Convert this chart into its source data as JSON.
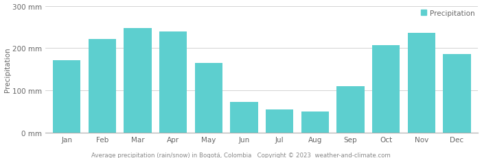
{
  "months": [
    "Jan",
    "Feb",
    "Mar",
    "Apr",
    "May",
    "Jun",
    "Jul",
    "Aug",
    "Sep",
    "Oct",
    "Nov",
    "Dec"
  ],
  "values": [
    172,
    221,
    247,
    240,
    165,
    74,
    55,
    51,
    110,
    208,
    236,
    187
  ],
  "bar_color": "#5dcfcf",
  "ylim": [
    0,
    300
  ],
  "yticks": [
    0,
    100,
    200,
    300
  ],
  "ytick_labels": [
    "0 mm",
    "100 mm",
    "200 mm",
    "300 mm"
  ],
  "ylabel": "Precipitation",
  "legend_label": "Precipitation",
  "legend_color": "#5dcfcf",
  "footer_text": "Average precipitation (rain/snow) in Bogotá, Colombia   Copyright © 2023  weather-and-climate.com",
  "grid_color": "#cccccc",
  "background_color": "#ffffff",
  "axis_fontsize": 7.5,
  "tick_fontsize": 7.5,
  "footer_fontsize": 6.2,
  "bar_width": 0.78,
  "figwidth": 7.02,
  "figheight": 2.32,
  "dpi": 100
}
